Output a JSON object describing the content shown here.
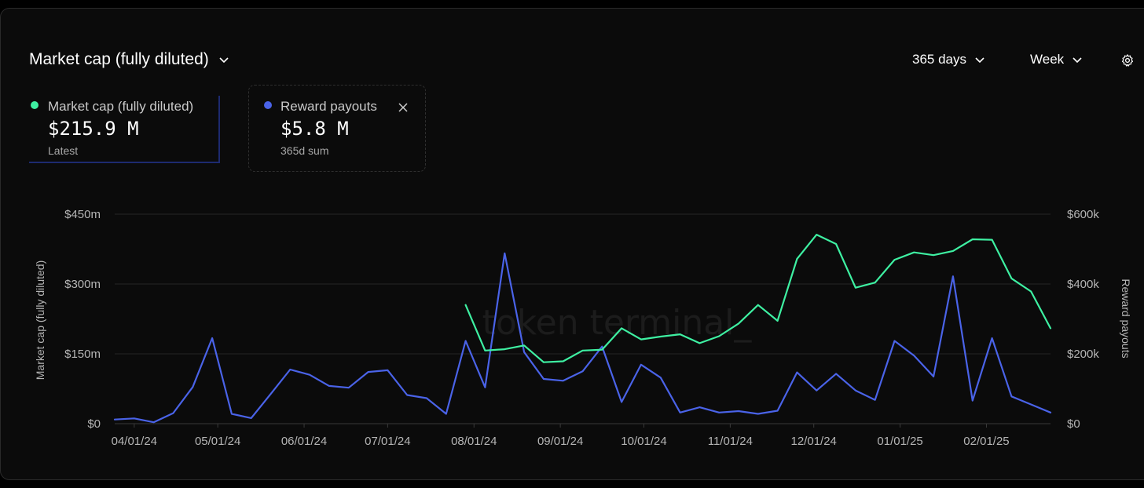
{
  "header": {
    "title": "Market cap (fully diluted)",
    "range_label": "365 days",
    "interval_label": "Week"
  },
  "cards": [
    {
      "label": "Market cap (fully diluted)",
      "value": "$215.9 M",
      "sub": "Latest",
      "color": "#3ef0a2"
    },
    {
      "label": "Reward payouts",
      "value": "$5.8 M",
      "sub": "365d sum",
      "color": "#4a63e8"
    }
  ],
  "watermark": "token terminal_",
  "chart_data": {
    "type": "line",
    "dual_axis": true,
    "x": [
      "2024-03-25",
      "2024-04-01",
      "2024-04-08",
      "2024-04-15",
      "2024-04-22",
      "2024-04-29",
      "2024-05-06",
      "2024-05-13",
      "2024-05-20",
      "2024-05-27",
      "2024-06-03",
      "2024-06-10",
      "2024-06-17",
      "2024-06-24",
      "2024-07-01",
      "2024-07-08",
      "2024-07-15",
      "2024-07-22",
      "2024-07-29",
      "2024-08-05",
      "2024-08-12",
      "2024-08-19",
      "2024-08-26",
      "2024-09-02",
      "2024-09-09",
      "2024-09-16",
      "2024-09-23",
      "2024-09-30",
      "2024-10-07",
      "2024-10-14",
      "2024-10-21",
      "2024-10-28",
      "2024-11-04",
      "2024-11-11",
      "2024-11-18",
      "2024-11-25",
      "2024-12-02",
      "2024-12-09",
      "2024-12-16",
      "2024-12-23",
      "2024-12-30",
      "2025-01-06",
      "2025-01-13",
      "2025-01-20",
      "2025-01-27",
      "2025-02-03",
      "2025-02-10",
      "2025-02-17",
      "2025-02-24"
    ],
    "xticks": [
      "04/01/24",
      "05/01/24",
      "06/01/24",
      "07/01/24",
      "08/01/24",
      "09/01/24",
      "10/01/24",
      "11/01/24",
      "12/01/24",
      "01/01/25",
      "02/01/25"
    ],
    "series": [
      {
        "name": "Market cap (fully diluted)",
        "axis": "left",
        "color": "#3ef0a2",
        "values": [
          null,
          null,
          null,
          null,
          null,
          null,
          null,
          null,
          null,
          null,
          null,
          null,
          null,
          null,
          null,
          null,
          null,
          null,
          255,
          157,
          160,
          168,
          132,
          134,
          157,
          159,
          205,
          181,
          187,
          192,
          173,
          188,
          215,
          255,
          221,
          354,
          406,
          386,
          292,
          303,
          352,
          368,
          362,
          371,
          396,
          395,
          312,
          284,
          205
        ]
      },
      {
        "name": "Reward payouts",
        "axis": "right",
        "color": "#4a63e8",
        "values": [
          12000,
          15000,
          4000,
          30000,
          105000,
          245000,
          28000,
          16000,
          85000,
          155000,
          140000,
          108000,
          103000,
          148000,
          153000,
          82000,
          73000,
          28000,
          237000,
          104000,
          488000,
          205000,
          128000,
          123000,
          150000,
          221000,
          62000,
          169000,
          132000,
          32000,
          47000,
          32000,
          36000,
          28000,
          37000,
          147000,
          95000,
          143000,
          95000,
          68000,
          237000,
          195000,
          135000,
          422000,
          66000,
          245000,
          78000,
          55000,
          32000
        ]
      }
    ],
    "ylabel_left": "Market cap (fully diluted)",
    "ylabel_right": "Reward payouts",
    "ylim_left": [
      0,
      450
    ],
    "ylim_right": [
      0,
      600000
    ],
    "yticks_left": [
      "$0",
      "$150m",
      "$300m",
      "$450m"
    ],
    "yticks_right": [
      "$0",
      "$200k",
      "$400k",
      "$600k"
    ],
    "grid": true
  }
}
